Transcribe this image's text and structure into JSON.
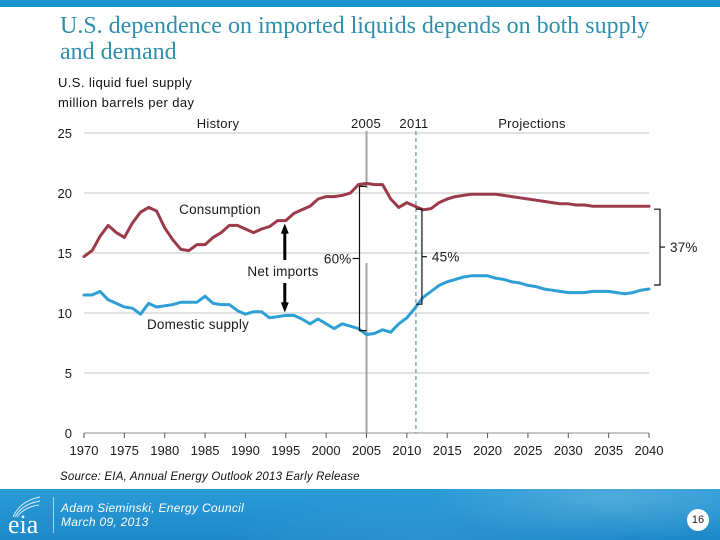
{
  "slide": {
    "title": "U.S. dependence on imported liquids depends on both supply and demand",
    "source": "Source:  EIA, Annual Energy Outlook 2013 Early Release",
    "footer": {
      "logo_text": "eia",
      "presenter": "Adam Sieminski, Energy Council",
      "date": "March 09, 2013",
      "page_number": "16"
    },
    "colors": {
      "brand_blue": "#1b95d0",
      "title": "#2e8fac",
      "consumption": "#9b3a4a",
      "domestic_supply": "#2d9fd4",
      "reference_2011": "#5f97ae"
    }
  },
  "chart_data": {
    "type": "line",
    "title": "U.S. liquid fuel supply",
    "ylabel": "million barrels per day",
    "xlabel": "",
    "xlim": [
      1970,
      2040
    ],
    "ylim": [
      0,
      25
    ],
    "grid": true,
    "xticks": [
      1970,
      1975,
      1980,
      1985,
      1990,
      1995,
      2000,
      2005,
      2010,
      2015,
      2020,
      2025,
      2030,
      2035,
      2040
    ],
    "yticks": [
      0,
      5,
      10,
      15,
      20,
      25
    ],
    "x": [
      1970,
      1971,
      1972,
      1973,
      1974,
      1975,
      1976,
      1977,
      1978,
      1979,
      1980,
      1981,
      1982,
      1983,
      1984,
      1985,
      1986,
      1987,
      1988,
      1989,
      1990,
      1991,
      1992,
      1993,
      1994,
      1995,
      1996,
      1997,
      1998,
      1999,
      2000,
      2001,
      2002,
      2003,
      2004,
      2005,
      2006,
      2007,
      2008,
      2009,
      2010,
      2011,
      2012,
      2013,
      2014,
      2015,
      2016,
      2017,
      2018,
      2019,
      2020,
      2021,
      2022,
      2023,
      2024,
      2025,
      2026,
      2027,
      2028,
      2029,
      2030,
      2031,
      2032,
      2033,
      2034,
      2035,
      2036,
      2037,
      2038,
      2039,
      2040
    ],
    "series": [
      {
        "name": "Consumption",
        "values": [
          14.7,
          15.2,
          16.4,
          17.3,
          16.7,
          16.3,
          17.5,
          18.4,
          18.8,
          18.5,
          17.1,
          16.1,
          15.3,
          15.2,
          15.7,
          15.7,
          16.3,
          16.7,
          17.3,
          17.3,
          17.0,
          16.7,
          17.0,
          17.2,
          17.7,
          17.7,
          18.3,
          18.6,
          18.9,
          19.5,
          19.7,
          19.7,
          19.8,
          20.0,
          20.7,
          20.8,
          20.7,
          20.7,
          19.5,
          18.8,
          19.2,
          18.9,
          18.6,
          18.7,
          19.2,
          19.5,
          19.7,
          19.8,
          19.9,
          19.9,
          19.9,
          19.9,
          19.8,
          19.7,
          19.6,
          19.5,
          19.4,
          19.3,
          19.2,
          19.1,
          19.1,
          19.0,
          19.0,
          18.9,
          18.9,
          18.9,
          18.9,
          18.9,
          18.9,
          18.9,
          18.9
        ]
      },
      {
        "name": "Domestic supply",
        "values": [
          11.5,
          11.5,
          11.8,
          11.1,
          10.8,
          10.5,
          10.4,
          9.9,
          10.8,
          10.5,
          10.6,
          10.7,
          10.9,
          10.9,
          10.9,
          11.4,
          10.8,
          10.7,
          10.7,
          10.2,
          9.9,
          10.1,
          10.1,
          9.6,
          9.7,
          9.8,
          9.8,
          9.5,
          9.1,
          9.5,
          9.1,
          8.7,
          9.1,
          8.9,
          8.7,
          8.2,
          8.3,
          8.6,
          8.4,
          9.1,
          9.6,
          10.4,
          11.3,
          11.8,
          12.3,
          12.6,
          12.8,
          13.0,
          13.1,
          13.1,
          13.1,
          12.9,
          12.8,
          12.6,
          12.5,
          12.3,
          12.2,
          12.0,
          11.9,
          11.8,
          11.7,
          11.7,
          11.7,
          11.8,
          11.8,
          11.8,
          11.7,
          11.6,
          11.7,
          11.9,
          12.0
        ]
      }
    ],
    "period_labels": {
      "history": "History",
      "ref_2005": "2005",
      "ref_2011": "2011",
      "projections": "Projections"
    },
    "reference_lines": [
      {
        "year": 2005,
        "style": "solid"
      },
      {
        "year": 2011,
        "style": "dashed"
      }
    ],
    "annotations": {
      "consumption": "Consumption",
      "net_imports": "Net imports",
      "domestic_supply": "Domestic supply"
    },
    "net_imports_arrow_year": 1995,
    "import_share_brackets": [
      {
        "year": 2005,
        "label": "60%",
        "label_side": "left"
      },
      {
        "year": 2011,
        "label": "45%",
        "label_side": "right"
      },
      {
        "year": 2040,
        "label": "37%",
        "label_side": "right"
      }
    ]
  }
}
